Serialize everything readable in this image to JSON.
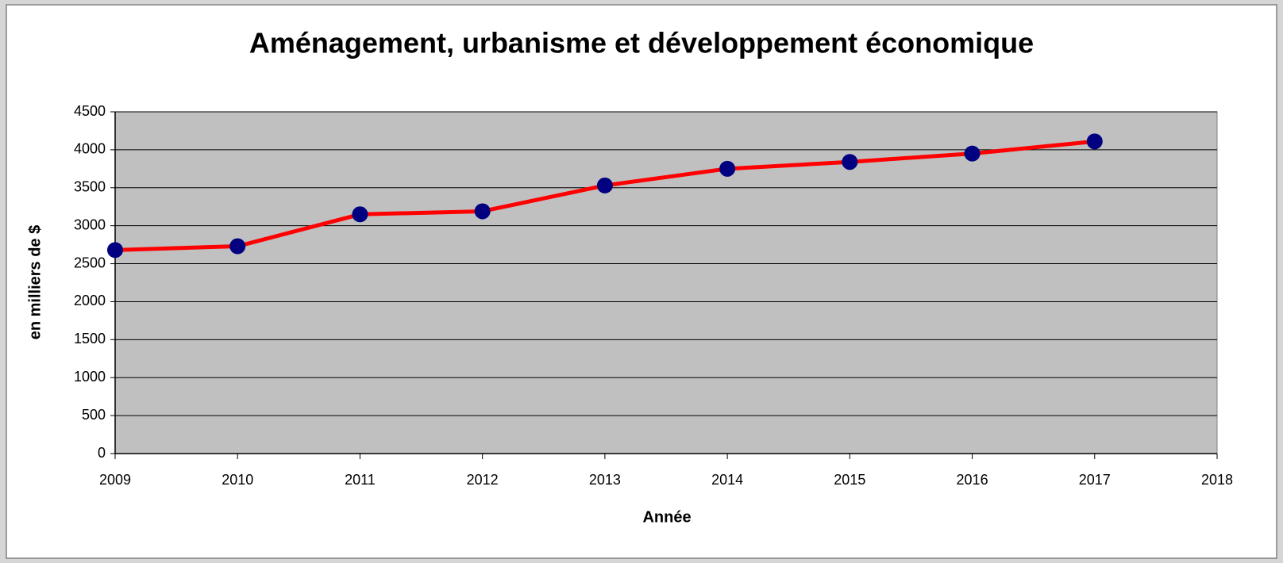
{
  "chart_data": {
    "type": "line",
    "title": "Aménagement, urbanisme et développement économique",
    "x_label": "Année",
    "y_label": "en milliers de $",
    "x": [
      2009,
      2010,
      2011,
      2012,
      2013,
      2014,
      2015,
      2016,
      2017
    ],
    "values": [
      2680,
      2730,
      3150,
      3190,
      3530,
      3750,
      3840,
      3950,
      4110
    ],
    "color": "#ff0000",
    "marker_color": "#000080",
    "xlim": [
      2009,
      2018
    ],
    "xticks": [
      2009,
      2010,
      2011,
      2012,
      2013,
      2014,
      2015,
      2016,
      2017,
      2018
    ],
    "ylim": [
      0,
      4500
    ],
    "yticks": [
      0,
      500,
      1000,
      1500,
      2000,
      2500,
      3000,
      3500,
      4000,
      4500
    ],
    "grid": true,
    "plot_background": "#c0c0c0"
  }
}
